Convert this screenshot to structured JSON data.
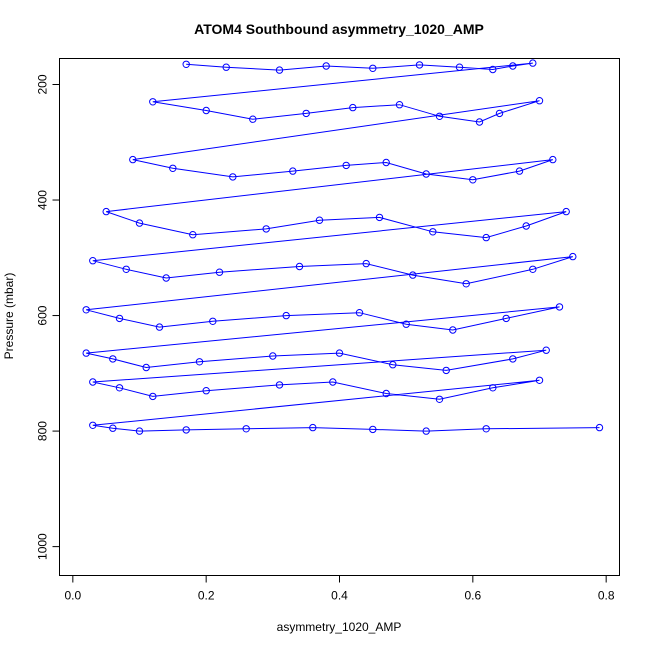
{
  "chart_data": {
    "type": "scatter",
    "title": "ATOM4 Southbound asymmetry_1020_AMP",
    "xlabel": "asymmetry_1020_AMP",
    "ylabel": "Pressure (mbar)",
    "xlim": [
      -0.02,
      0.82
    ],
    "ylim": [
      1050,
      155
    ],
    "y_reversed": true,
    "xticks": [
      0.0,
      0.2,
      0.4,
      0.6,
      0.8
    ],
    "xtick_labels": [
      "0.0",
      "0.2",
      "0.4",
      "0.6",
      "0.8"
    ],
    "yticks": [
      200,
      400,
      600,
      800,
      1000
    ],
    "ytick_labels": [
      "200",
      "400",
      "600",
      "800",
      "1000"
    ],
    "grid": false,
    "legend": "none",
    "marker": "open-circle",
    "connected": true,
    "series": [
      {
        "color": "#0000ff",
        "x": [
          0.17,
          0.23,
          0.31,
          0.38,
          0.45,
          0.52,
          0.58,
          0.63,
          0.66,
          0.69,
          0.12,
          0.2,
          0.27,
          0.35,
          0.42,
          0.49,
          0.55,
          0.61,
          0.64,
          0.7,
          0.09,
          0.15,
          0.24,
          0.33,
          0.41,
          0.47,
          0.53,
          0.6,
          0.67,
          0.72,
          0.05,
          0.1,
          0.18,
          0.29,
          0.37,
          0.46,
          0.54,
          0.62,
          0.68,
          0.74,
          0.03,
          0.08,
          0.14,
          0.22,
          0.34,
          0.44,
          0.51,
          0.59,
          0.69,
          0.75,
          0.02,
          0.07,
          0.13,
          0.21,
          0.32,
          0.43,
          0.5,
          0.57,
          0.65,
          0.73,
          0.02,
          0.06,
          0.11,
          0.19,
          0.3,
          0.4,
          0.48,
          0.56,
          0.66,
          0.71,
          0.03,
          0.07,
          0.12,
          0.2,
          0.31,
          0.39,
          0.47,
          0.55,
          0.63,
          0.7,
          0.03,
          0.06,
          0.1,
          0.17,
          0.26,
          0.36,
          0.45,
          0.53,
          0.62,
          0.79
        ],
        "y": [
          165,
          170,
          175,
          168,
          172,
          166,
          170,
          174,
          168,
          163,
          230,
          245,
          260,
          250,
          240,
          235,
          255,
          265,
          250,
          228,
          330,
          345,
          360,
          350,
          340,
          335,
          355,
          365,
          350,
          330,
          420,
          440,
          460,
          450,
          435,
          430,
          455,
          465,
          445,
          420,
          505,
          520,
          535,
          525,
          515,
          510,
          530,
          545,
          520,
          498,
          590,
          605,
          620,
          610,
          600,
          595,
          615,
          625,
          605,
          585,
          665,
          675,
          690,
          680,
          670,
          665,
          685,
          695,
          675,
          660,
          715,
          725,
          740,
          730,
          720,
          715,
          735,
          745,
          725,
          712,
          790,
          795,
          800,
          798,
          796,
          794,
          797,
          800,
          796,
          794
        ]
      }
    ]
  }
}
